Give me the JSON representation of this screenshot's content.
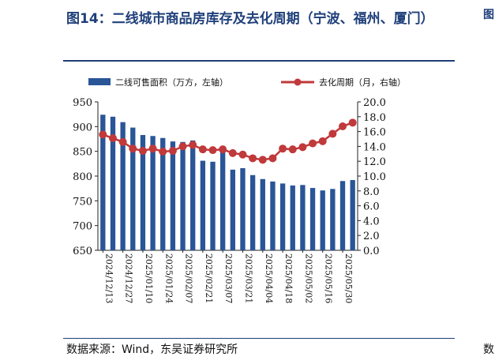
{
  "header": {
    "title": "图14：二线城市商品房库存及去化周期（宁波、福州、厦门）",
    "source": "数据来源：Wind，东吴证券研究所",
    "edge_glyphs": [
      "图",
      "数"
    ]
  },
  "colors": {
    "bar": "#2a5597",
    "line": "#c0393b",
    "title": "#1f3f7a"
  },
  "chart_data": {
    "type": "bar+line",
    "x_tick_labels": [
      "2024/12/13",
      "2024/12/27",
      "2025/01/10",
      "2025/01/24",
      "2025/02/07",
      "2025/02/21",
      "2025/03/07",
      "2025/03/21",
      "2025/04/04",
      "2025/04/18",
      "2025/05/02",
      "2025/05/16",
      "2025/05/30"
    ],
    "series": [
      {
        "name": "二线可售面积（万方，左轴）",
        "type": "bar",
        "axis": "left",
        "values": [
          924,
          920,
          909,
          898,
          883,
          881,
          877,
          870,
          869,
          872,
          831,
          829,
          858,
          813,
          816,
          802,
          794,
          789,
          785,
          781,
          782,
          776,
          771,
          774,
          790,
          792
        ]
      },
      {
        "name": "去化周期（月，右轴）",
        "type": "line",
        "axis": "right",
        "values": [
          15.6,
          15.1,
          14.6,
          13.7,
          13.4,
          13.7,
          13.3,
          13.4,
          14.0,
          14.2,
          13.6,
          13.5,
          13.6,
          13.1,
          12.9,
          12.4,
          12.2,
          12.4,
          13.7,
          13.6,
          13.9,
          14.4,
          14.7,
          15.7,
          16.7,
          17.2
        ]
      }
    ],
    "y_left": {
      "min": 650,
      "max": 950,
      "ticks": [
        "950",
        "900",
        "850",
        "800",
        "750",
        "700",
        "650"
      ]
    },
    "y_right": {
      "min": 0,
      "max": 20,
      "ticks": [
        "20.0",
        "18.0",
        "16.0",
        "14.0",
        "12.0",
        "10.0",
        "8.0",
        "6.0",
        "4.0",
        "2.0",
        "0.0"
      ]
    },
    "legend": {
      "placement": "top",
      "bar_label": "二线可售面积（万方，左轴）",
      "line_label": "去化周期（月，右轴）"
    }
  }
}
